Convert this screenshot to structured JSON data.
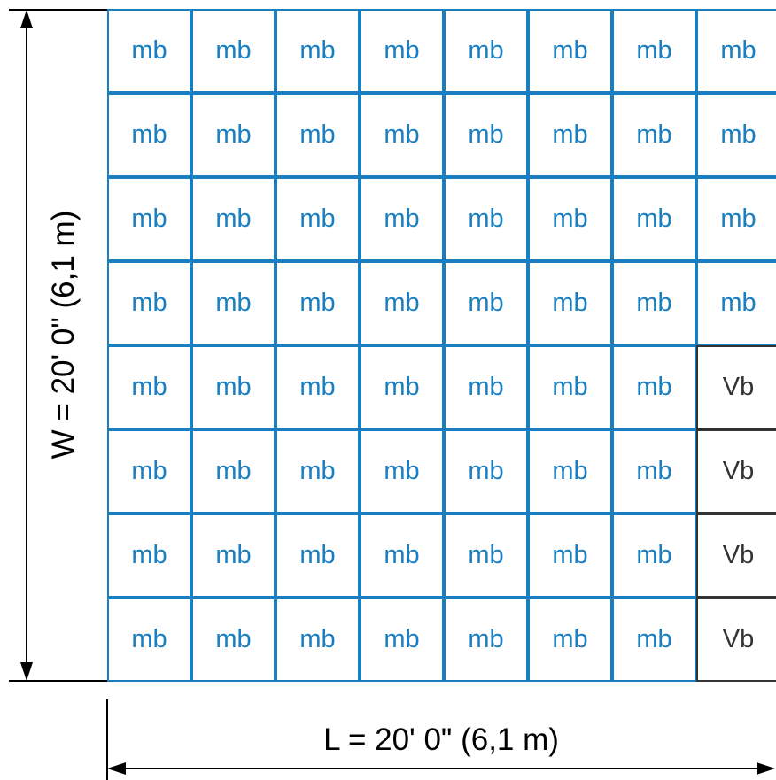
{
  "dimensions": {
    "width_label": "W = 20' 0\" (6,1 m)",
    "length_label": "L = 20' 0\" (6,1 m)"
  },
  "grid": {
    "rows": [
      [
        "mb",
        "mb",
        "mb",
        "mb",
        "mb",
        "mb",
        "mb",
        "mb"
      ],
      [
        "mb",
        "mb",
        "mb",
        "mb",
        "mb",
        "mb",
        "mb",
        "mb"
      ],
      [
        "mb",
        "mb",
        "mb",
        "mb",
        "mb",
        "mb",
        "mb",
        "mb"
      ],
      [
        "mb",
        "mb",
        "mb",
        "mb",
        "mb",
        "mb",
        "mb",
        "mb"
      ],
      [
        "mb",
        "mb",
        "mb",
        "mb",
        "mb",
        "mb",
        "mb",
        "Vb"
      ],
      [
        "mb",
        "mb",
        "mb",
        "mb",
        "mb",
        "mb",
        "mb",
        "Vb"
      ],
      [
        "mb",
        "mb",
        "mb",
        "mb",
        "mb",
        "mb",
        "mb",
        "Vb"
      ],
      [
        "mb",
        "mb",
        "mb",
        "mb",
        "mb",
        "mb",
        "mb",
        "Vb"
      ]
    ]
  },
  "colors": {
    "mb": "#1a7fc1",
    "Vb": "#333333",
    "dimension_lines": "#000000"
  }
}
